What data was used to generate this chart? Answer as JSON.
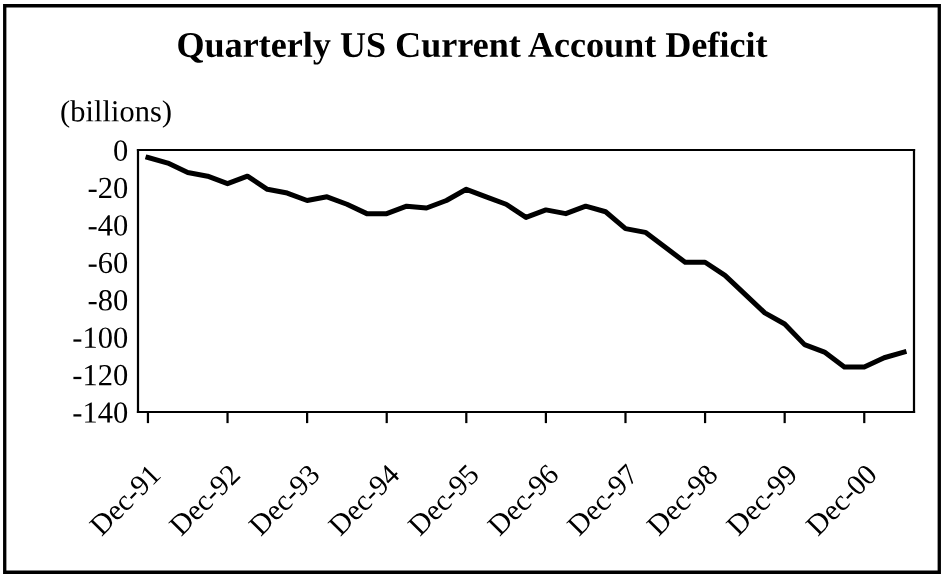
{
  "chart_data": {
    "type": "line",
    "title": "Quarterly US Current Account Deficit",
    "ylabel": "(billions)",
    "categories": [
      "Dec-91",
      null,
      null,
      null,
      "Dec-92",
      null,
      null,
      null,
      "Dec-93",
      null,
      null,
      null,
      "Dec-94",
      null,
      null,
      null,
      "Dec-95",
      null,
      null,
      null,
      "Dec-96",
      null,
      null,
      null,
      "Dec-97",
      null,
      null,
      null,
      "Dec-98",
      null,
      null,
      null,
      "Dec-99",
      null,
      null,
      null,
      "Dec-00",
      null,
      null
    ],
    "series": [
      {
        "color": "#000000",
        "values": [
          -4,
          -7,
          -12,
          -14,
          -18,
          -14,
          -21,
          -23,
          -27,
          -25,
          -29,
          -34,
          -34,
          -30,
          -31,
          -27,
          -21,
          -25,
          -29,
          -36,
          -32,
          -34,
          -30,
          -33,
          -42,
          -44,
          -52,
          -60,
          -60,
          -67,
          -77,
          -87,
          -93,
          -104,
          -108,
          -116,
          -116,
          -111,
          -108
        ]
      }
    ],
    "ylim": [
      -140,
      0
    ],
    "yticks": [
      -140,
      -120,
      -100,
      -80,
      -60,
      -40,
      -20,
      0
    ],
    "grid": false,
    "legend": false
  }
}
